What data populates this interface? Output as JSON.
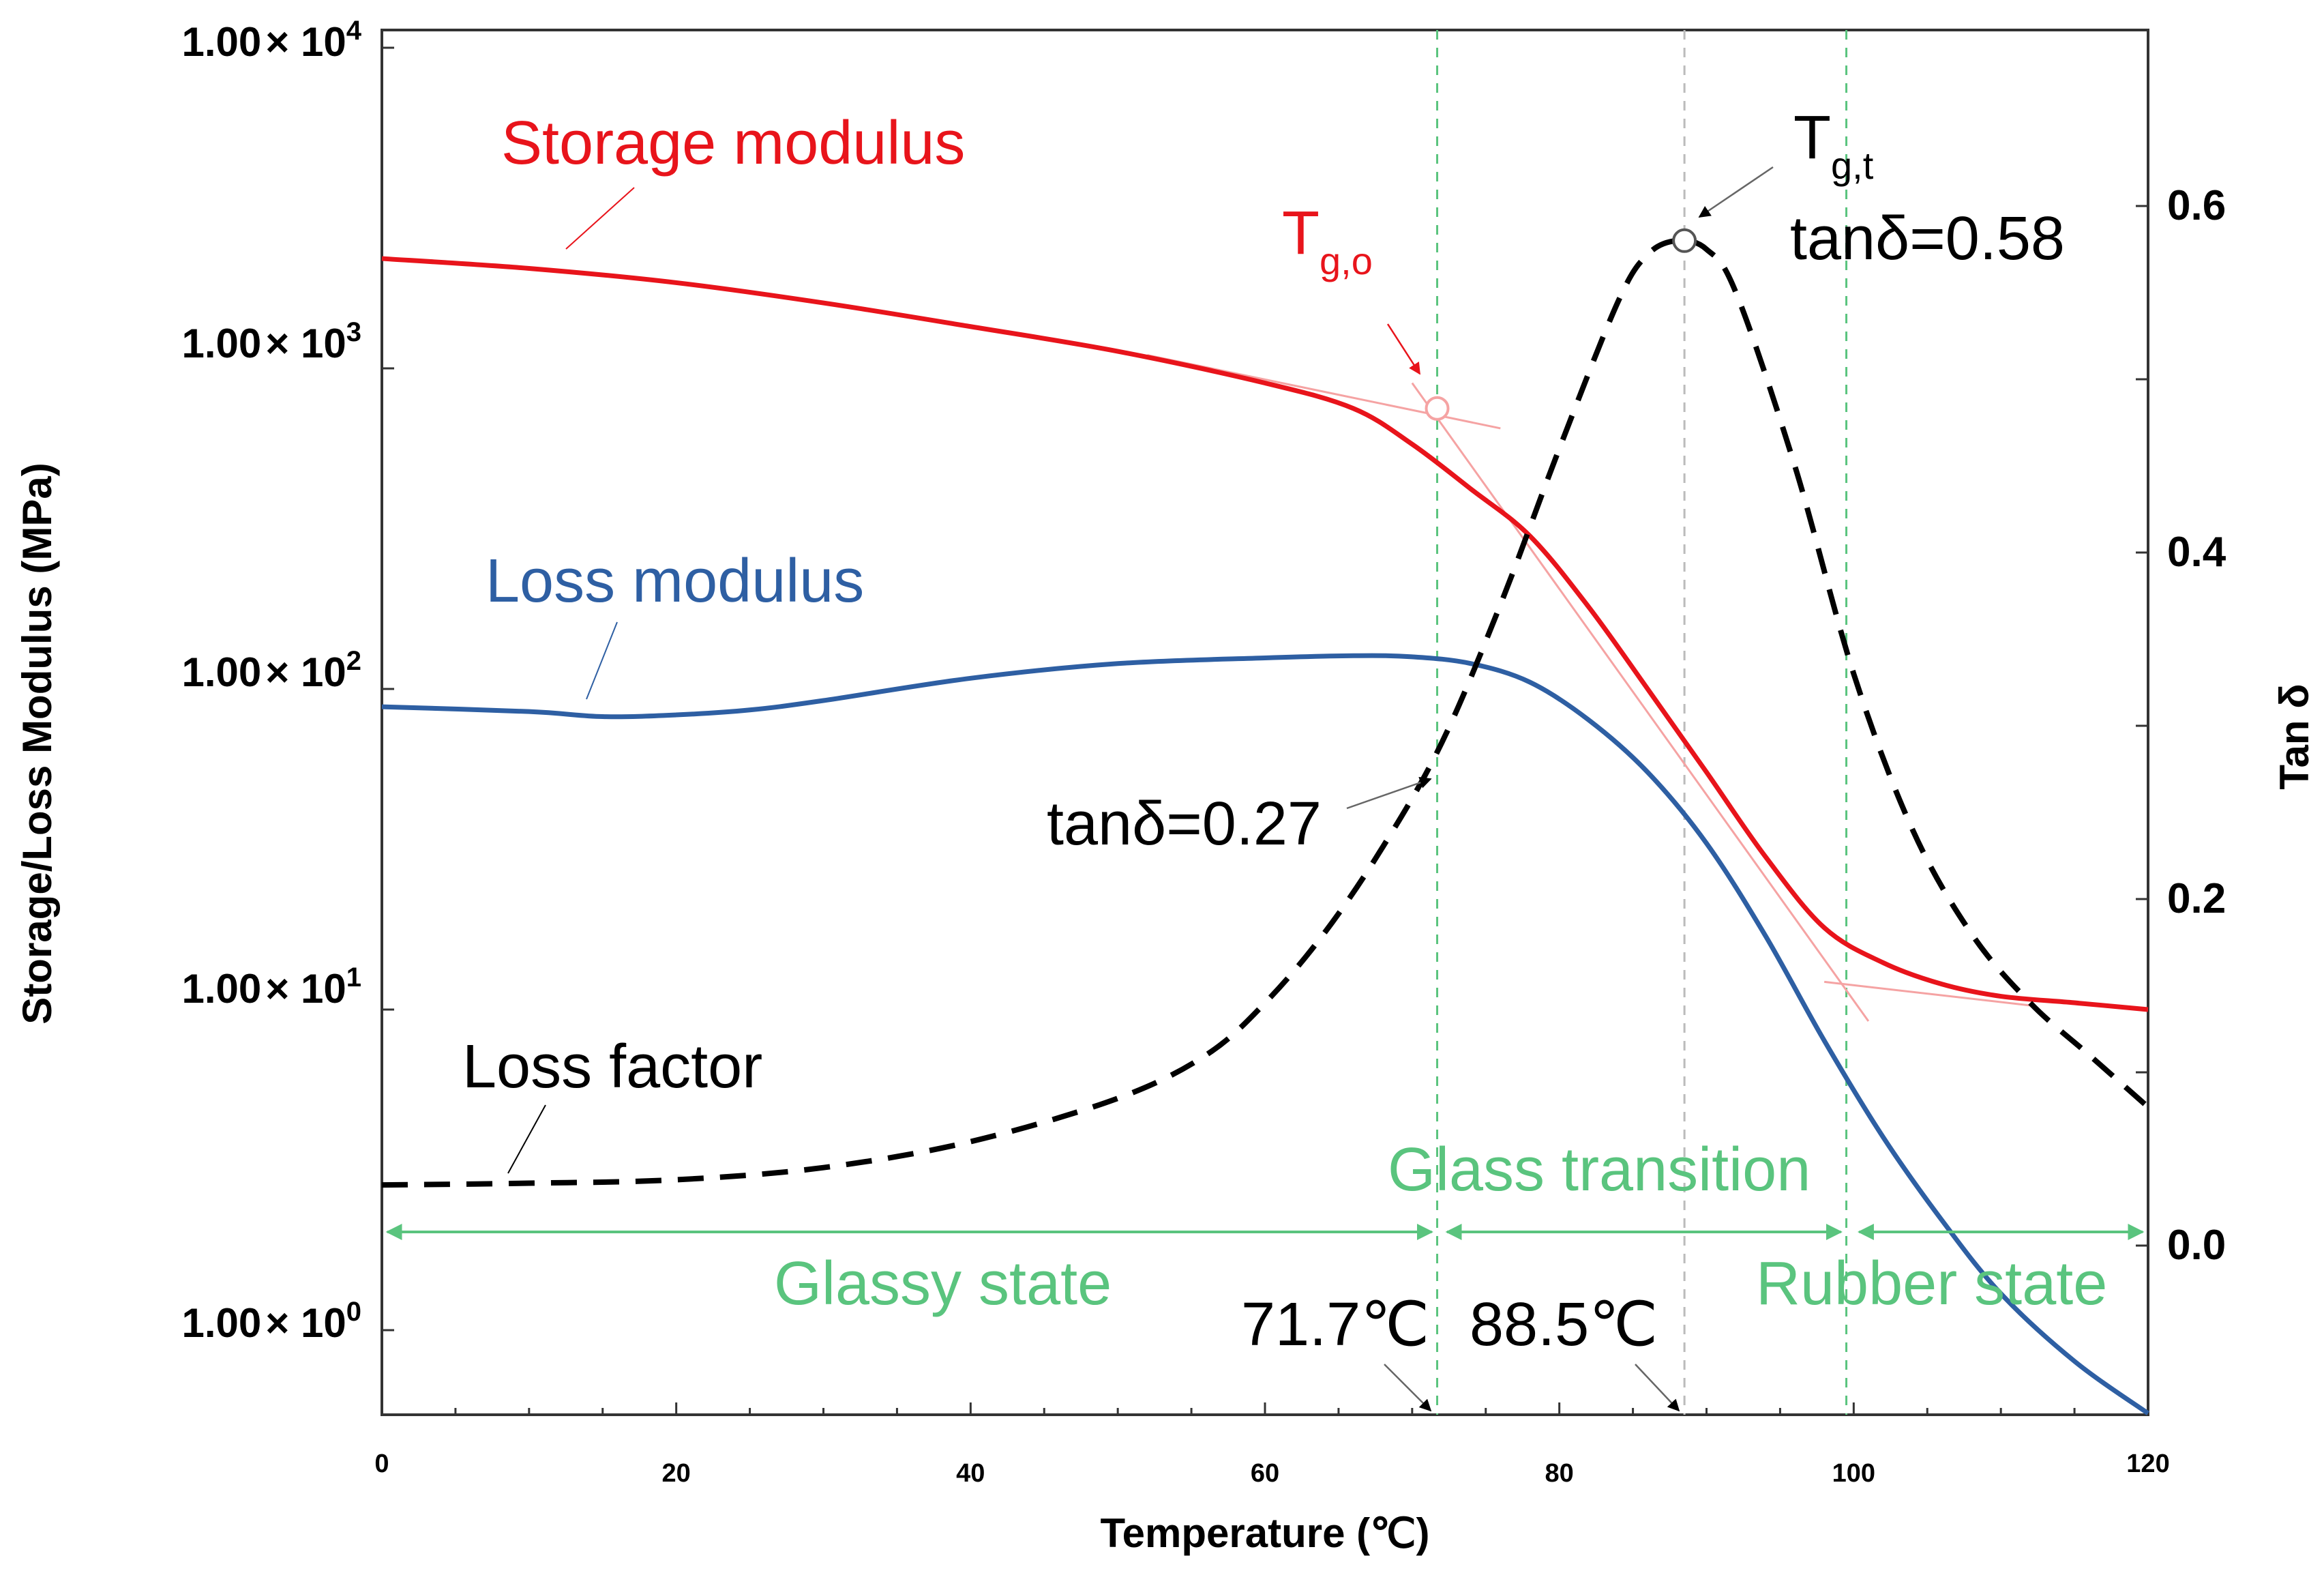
{
  "chart_data": {
    "type": "line",
    "x_axis": {
      "label": "Temperature (℃)",
      "range": [
        0,
        120
      ],
      "ticks": [
        "0",
        "20",
        "40",
        "60",
        "80",
        "100",
        "120"
      ]
    },
    "y_left_axis": {
      "label": "Storage/Loss Modulus (MPa)",
      "scale": "log",
      "range": [
        0.5,
        10000
      ],
      "ticks": [
        {
          "mantissa": "1.00",
          "times": "× 10",
          "exp": "4"
        },
        {
          "mantissa": "1.00",
          "times": "× 10",
          "exp": "3"
        },
        {
          "mantissa": "1.00",
          "times": "× 10",
          "exp": "2"
        },
        {
          "mantissa": "1.00",
          "times": "× 10",
          "exp": "1"
        },
        {
          "mantissa": "1.00",
          "times": "× 10",
          "exp": "0"
        }
      ]
    },
    "y_right_axis": {
      "label": "Tan δ",
      "range": [
        -0.1,
        0.7
      ],
      "ticks": [
        "0.6",
        "0.4",
        "0.2",
        "0.0"
      ]
    },
    "series": [
      {
        "name": "Storage modulus",
        "color": "#e8141b",
        "axis": "left",
        "x": [
          0,
          10,
          20,
          30,
          40,
          50,
          60,
          66,
          70,
          74,
          78,
          82,
          86,
          90,
          94,
          98,
          102,
          106,
          110,
          115,
          120
        ],
        "y": [
          2200,
          2050,
          1850,
          1600,
          1350,
          1130,
          900,
          750,
          580,
          420,
          300,
          180,
          100,
          55,
          30,
          18,
          14,
          12,
          11,
          10.5,
          10
        ]
      },
      {
        "name": "Loss modulus",
        "color": "#2e5fa3",
        "axis": "left",
        "x": [
          0,
          10,
          15,
          20,
          25,
          30,
          40,
          50,
          60,
          66,
          70,
          74,
          78,
          82,
          86,
          90,
          94,
          98,
          102,
          106,
          110,
          115,
          120
        ],
        "y": [
          88,
          85,
          82,
          83,
          86,
          92,
          108,
          120,
          125,
          127,
          126,
          120,
          105,
          80,
          55,
          33,
          17,
          8,
          4,
          2.2,
          1.3,
          0.8,
          0.55
        ]
      },
      {
        "name": "Loss factor",
        "color": "#000000",
        "axis": "right",
        "dashed": true,
        "x": [
          0,
          10,
          20,
          30,
          40,
          50,
          56,
          60,
          64,
          68,
          72,
          76,
          80,
          84,
          86,
          88,
          90,
          92,
          96,
          100,
          104,
          108,
          112,
          116,
          120
        ],
        "y": [
          0.035,
          0.036,
          0.038,
          0.045,
          0.06,
          0.085,
          0.11,
          0.14,
          0.18,
          0.23,
          0.29,
          0.37,
          0.46,
          0.545,
          0.572,
          0.58,
          0.575,
          0.55,
          0.45,
          0.33,
          0.24,
          0.18,
          0.14,
          0.11,
          0.08
        ]
      }
    ],
    "markers": [
      {
        "name": "Tg,o",
        "x": 71.7,
        "axis": "left",
        "y": 750
      },
      {
        "name": "Tg,t",
        "x": 88.5,
        "axis": "right",
        "y": 0.58
      }
    ],
    "vertical_lines": [
      71.7,
      88.5,
      99.5
    ],
    "region_arrows": [
      {
        "from": 0,
        "to": 71.7
      },
      {
        "from": 72,
        "to": 99.5
      },
      {
        "from": 100,
        "to": 120
      }
    ],
    "annotations": {
      "storage_modulus": "Storage modulus",
      "loss_modulus": "Loss modulus",
      "loss_factor": "Loss factor",
      "tg_o_base": "T",
      "tg_o_sub": "g,o",
      "tg_t_base": "T",
      "tg_t_sub": "g,t",
      "tan_peak": "tanδ=0.58",
      "tan_onset": "tanδ=0.27",
      "glassy_state": "Glassy state",
      "glass_transition": "Glass transition",
      "rubber_state": "Rubber state",
      "temp_onset": "71.7℃",
      "temp_peak": "88.5℃"
    },
    "colors": {
      "storage": "#e8141b",
      "loss": "#2e5fa3",
      "factor": "#000000",
      "region": "#5ac47e",
      "guide": "#f5a3a3",
      "pointer": "#666666"
    }
  }
}
